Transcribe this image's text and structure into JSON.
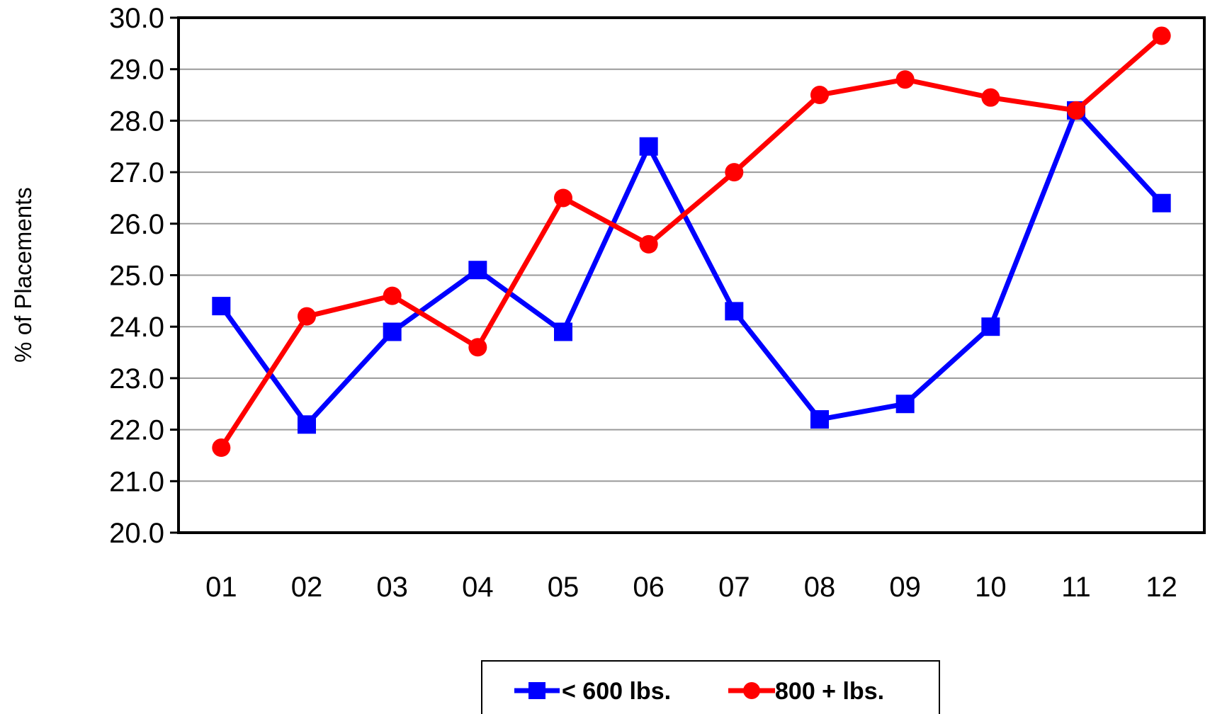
{
  "chart_data": {
    "type": "line",
    "title": "",
    "xlabel": "",
    "ylabel": "% of Placements",
    "categories": [
      "01",
      "02",
      "03",
      "04",
      "05",
      "06",
      "07",
      "08",
      "09",
      "10",
      "11",
      "12"
    ],
    "ylim": [
      20.0,
      30.0
    ],
    "yticks": [
      "20.0",
      "21.0",
      "22.0",
      "23.0",
      "24.0",
      "25.0",
      "26.0",
      "27.0",
      "28.0",
      "29.0",
      "30.0"
    ],
    "grid": true,
    "legend_position": "bottom",
    "series": [
      {
        "name": "< 600 lbs.",
        "color": "#0000ff",
        "marker": "square",
        "values": [
          24.4,
          22.1,
          23.9,
          25.1,
          23.9,
          27.5,
          24.3,
          22.2,
          22.5,
          24.0,
          28.2,
          26.4
        ]
      },
      {
        "name": "800 + lbs.",
        "color": "#ff0000",
        "marker": "circle",
        "values": [
          21.65,
          24.2,
          24.6,
          23.6,
          26.5,
          25.6,
          27.0,
          28.5,
          28.8,
          28.45,
          28.2,
          29.65
        ]
      }
    ]
  }
}
